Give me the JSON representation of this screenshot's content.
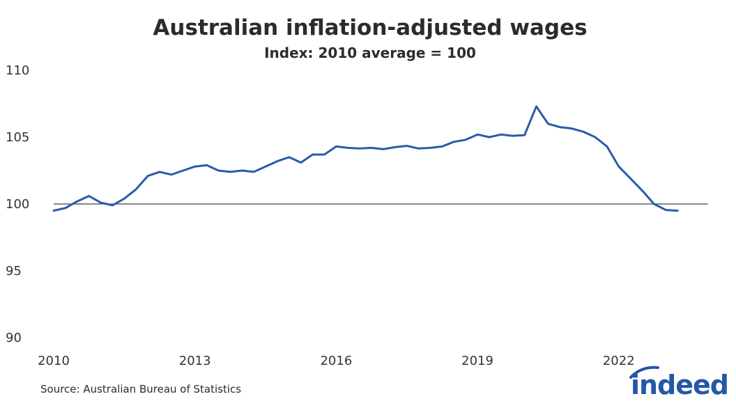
{
  "chart_data": {
    "type": "line",
    "title": "Australian inflation-adjusted wages",
    "subtitle": "Index: 2010 average = 100",
    "xlabel": "",
    "ylabel": "",
    "ylim": [
      90,
      110
    ],
    "xlim": [
      2010.0,
      2023.75
    ],
    "yticks": [
      "110",
      "105",
      "100",
      "95",
      "90"
    ],
    "xticks": [
      "2010",
      "2013",
      "2016",
      "2019",
      "2022"
    ],
    "reference_line": 100,
    "grid": false,
    "legend": "none",
    "series": [
      {
        "color": "#2c5ba8",
        "x": [
          2010.0,
          2010.25,
          2010.5,
          2010.75,
          2011.0,
          2011.25,
          2011.5,
          2011.75,
          2012.0,
          2012.25,
          2012.5,
          2012.75,
          2013.0,
          2013.25,
          2013.5,
          2013.75,
          2014.0,
          2014.25,
          2014.5,
          2014.75,
          2015.0,
          2015.25,
          2015.5,
          2015.75,
          2016.0,
          2016.25,
          2016.5,
          2016.75,
          2017.0,
          2017.25,
          2017.5,
          2017.75,
          2018.0,
          2018.25,
          2018.5,
          2018.75,
          2019.0,
          2019.25,
          2019.5,
          2019.75,
          2020.0,
          2020.25,
          2020.5,
          2020.75,
          2021.0,
          2021.25,
          2021.5,
          2021.75,
          2022.0,
          2022.25,
          2022.5,
          2022.75,
          2023.0,
          2023.25
        ],
        "values": [
          99.5,
          99.7,
          100.2,
          100.6,
          100.1,
          99.9,
          100.4,
          101.1,
          102.1,
          102.4,
          102.2,
          102.5,
          102.8,
          102.9,
          102.5,
          102.4,
          102.5,
          102.4,
          102.8,
          103.2,
          103.5,
          103.1,
          103.7,
          103.7,
          104.3,
          104.2,
          104.15,
          104.2,
          104.1,
          104.25,
          104.35,
          104.15,
          104.2,
          104.3,
          104.65,
          104.8,
          105.2,
          105.0,
          105.2,
          105.1,
          105.15,
          107.3,
          106.0,
          105.75,
          105.65,
          105.4,
          105.0,
          104.3,
          102.8,
          101.9,
          101.0,
          100.0,
          99.55,
          99.5
        ]
      }
    ]
  },
  "source": "Source: Australian Bureau of Statistics",
  "logo_text": "indeed",
  "colors": {
    "line": "#2c5ba8",
    "reference_line": "#111111",
    "logo": "#2557a7"
  }
}
